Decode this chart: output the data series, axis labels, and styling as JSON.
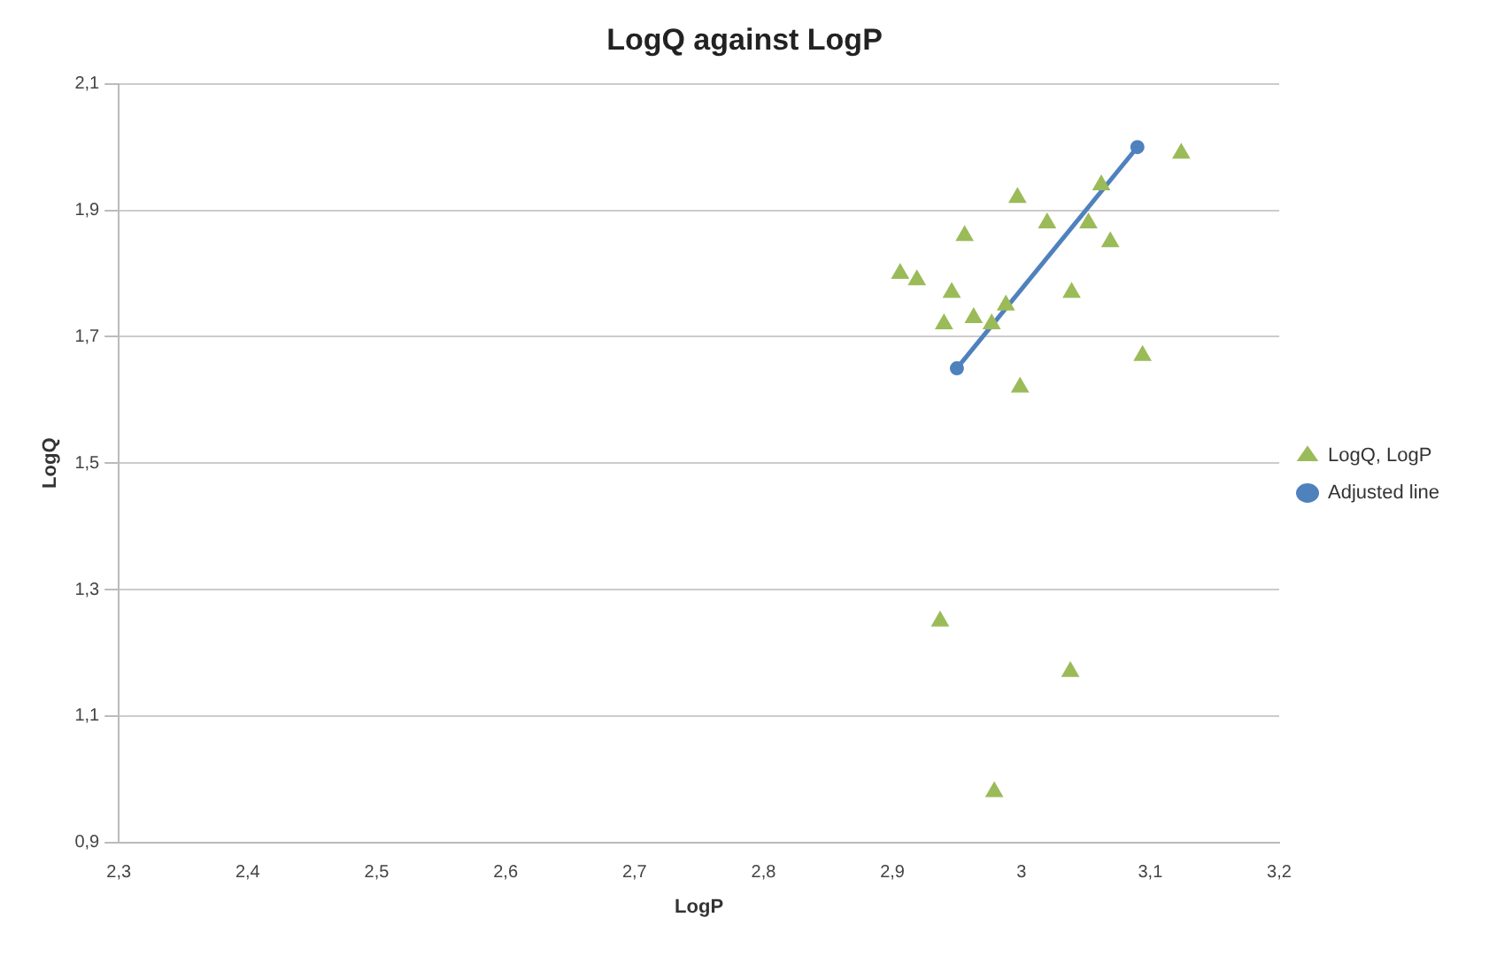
{
  "chart_data": {
    "type": "scatter",
    "title": "LogQ against LogP",
    "xlabel": "LogP",
    "ylabel": "LogQ",
    "xlim": [
      2.3,
      3.2
    ],
    "ylim": [
      0.9,
      2.1
    ],
    "xticks": [
      {
        "value": 2.3,
        "label": "2,3"
      },
      {
        "value": 2.4,
        "label": "2,4"
      },
      {
        "value": 2.5,
        "label": "2,5"
      },
      {
        "value": 2.6,
        "label": "2,6"
      },
      {
        "value": 2.7,
        "label": "2,7"
      },
      {
        "value": 2.8,
        "label": "2,8"
      },
      {
        "value": 2.9,
        "label": "2,9"
      },
      3,
      {
        "value": 3.1,
        "label": "3,1"
      },
      {
        "value": 3.2,
        "label": "3,2"
      }
    ],
    "yticks": [
      {
        "value": 0.9,
        "label": "0,9"
      },
      {
        "value": 1.1,
        "label": "1,1"
      },
      {
        "value": 1.3,
        "label": "1,3"
      },
      {
        "value": 1.5,
        "label": "1,5"
      },
      {
        "value": 1.7,
        "label": "1,7"
      },
      {
        "value": 1.9,
        "label": "1,9"
      },
      {
        "value": 2.1,
        "label": "2,1"
      }
    ],
    "grid": "y",
    "legend": "right",
    "series": [
      {
        "name": "LogQ, LogP",
        "type": "scatter",
        "marker": "triangle",
        "color": "#9bbb59",
        "x": [
          2.906,
          2.919,
          2.956,
          2.946,
          2.94,
          2.963,
          2.988,
          2.977,
          2.997,
          3.02,
          3.052,
          3.069,
          3.039,
          2.999,
          3.094,
          3.062,
          3.124,
          2.937,
          3.038,
          2.979
        ],
        "values": [
          1.8,
          1.79,
          1.86,
          1.77,
          1.72,
          1.73,
          1.75,
          1.72,
          1.92,
          1.88,
          1.88,
          1.85,
          1.77,
          1.62,
          1.67,
          1.94,
          1.99,
          1.25,
          1.17,
          0.98
        ]
      },
      {
        "name": "Adjusted line",
        "type": "line",
        "marker": "circle",
        "color": "#4f81bd",
        "x": [
          2.95,
          3.09
        ],
        "values": [
          1.65,
          2.0
        ]
      }
    ]
  }
}
